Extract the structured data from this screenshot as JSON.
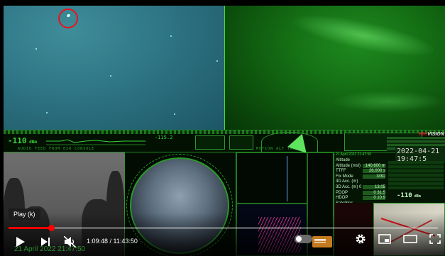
{
  "player": {
    "tooltip": "Play (k)",
    "time_current": "1:09:48",
    "time_separator": " / ",
    "time_total": "11:43:50",
    "progress_fraction": 0.099,
    "controls": {
      "play": "play-icon",
      "next": "next-icon",
      "mute": "volume-muted-icon",
      "autoplay": "autoplay-toggle-icon",
      "settings": "gear-icon",
      "miniplayer": "miniplayer-icon",
      "theater": "theater-icon",
      "fullscreen": "fullscreen-icon"
    },
    "accent_color": "#ff0000"
  },
  "overlay": {
    "db_left": "-110",
    "db_unit": " dBm",
    "mid_value": "-115.2",
    "label_left": "AUDIO FEED FROM ESR CONSOLE",
    "label_mid": "GPS MOTION ALT TRACK",
    "watermark_date": "21 April 2022 21:47:50",
    "brand_prefix": "HIK",
    "brand_suffix": "VISION",
    "clock": "2022-04-21 19:47:5",
    "panel_date": "21 April 2022 21:47:50",
    "db_panel": "-110",
    "db_panel_unit": " dBm",
    "rows": [
      {
        "k": "Altitude",
        "v": ""
      },
      {
        "k": "Altitude (msl)",
        "v": "140.600 m"
      },
      {
        "k": "TTFF",
        "v": "26.000 s"
      },
      {
        "k": "Fix Mode",
        "v": "3/3D"
      },
      {
        "k": "3D Acc. (m)",
        "v": ""
      },
      {
        "k": "3D Acc. (m) 0",
        "v": "13.05"
      },
      {
        "k": "PDOP",
        "v": "0 31.5"
      },
      {
        "k": "HDOP",
        "v": "0 10.9"
      },
      {
        "k": "Satellites",
        "v": ""
      }
    ]
  }
}
